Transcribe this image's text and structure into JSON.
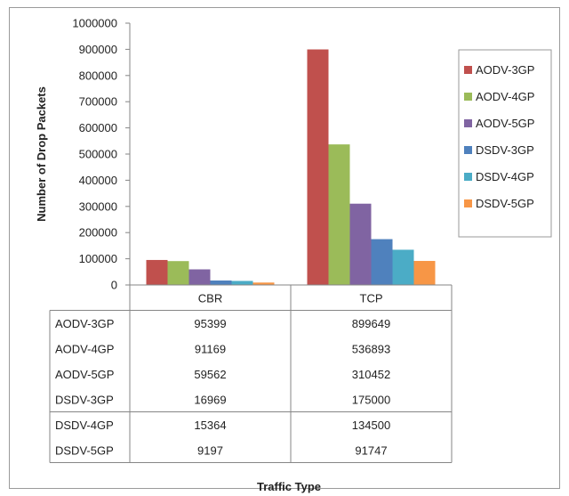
{
  "chart_data": {
    "type": "bar",
    "xlabel": "Traffic Type",
    "ylabel": "Number of Drop Packets",
    "ylim": [
      0,
      1000000
    ],
    "yticks": [
      "0",
      "100000",
      "200000",
      "300000",
      "400000",
      "500000",
      "600000",
      "700000",
      "800000",
      "900000",
      "1000000"
    ],
    "categories": [
      "CBR",
      "TCP"
    ],
    "series": [
      {
        "name": "AODV-3GP",
        "color": "#c0504d",
        "values": [
          95399,
          899649
        ],
        "labels": [
          "95399",
          "899649"
        ]
      },
      {
        "name": "AODV-4GP",
        "color": "#9bbb59",
        "values": [
          91169,
          536893
        ],
        "labels": [
          "91169",
          "536893"
        ]
      },
      {
        "name": "AODV-5GP",
        "color": "#8064a2",
        "values": [
          59562,
          310452
        ],
        "labels": [
          "59562",
          "310452"
        ]
      },
      {
        "name": "DSDV-3GP",
        "color": "#4f81bd",
        "values": [
          16969,
          175000
        ],
        "labels": [
          "16969",
          "175000"
        ]
      },
      {
        "name": "DSDV-4GP",
        "color": "#4bacc6",
        "values": [
          15364,
          134500
        ],
        "labels": [
          "15364",
          "134500"
        ]
      },
      {
        "name": "DSDV-5GP",
        "color": "#f79646",
        "values": [
          9197,
          91747
        ],
        "labels": [
          "9197",
          "91747"
        ]
      }
    ],
    "legend_position": "right",
    "data_table": true,
    "grid": false
  }
}
